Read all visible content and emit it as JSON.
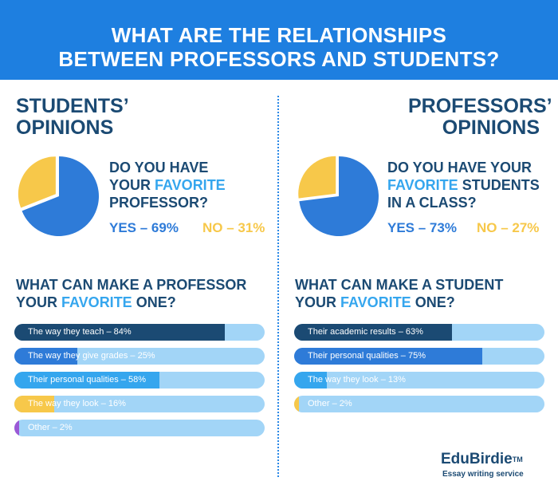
{
  "header": {
    "title_line1": "WHAT ARE THE RELATIONSHIPS",
    "title_line2": "BETWEEN PROFESSORS AND STUDENTS?"
  },
  "colors": {
    "banner": "#1e7fe0",
    "navy": "#1b4a73",
    "accent_blue": "#35a6ee",
    "yes_blue": "#2e7bd8",
    "no_yellow": "#f7c84a",
    "bar_track": "#a2d5f7"
  },
  "students": {
    "heading_line1": "STUDENTS’",
    "heading_line2": "OPINIONS",
    "question_line1": "DO YOU HAVE",
    "question_line2_pre": "YOUR ",
    "question_line2_fav": "FAVORITE",
    "question_line3": "PROFESSOR?",
    "yes_label": "YES – 69%",
    "no_label": "NO – 31%",
    "bars_title_line1": "WHAT CAN MAKE A PROFESSOR",
    "bars_title_line2_pre": "YOUR ",
    "bars_title_line2_fav": "FAVORITE",
    "bars_title_line2_post": " ONE?"
  },
  "professors": {
    "heading_line1": "PROFESSORS’",
    "heading_line2": "OPINIONS",
    "question_line1": "DO YOU HAVE YOUR",
    "question_line2_fav": "FAVORITE",
    "question_line2_post": " STUDENTS",
    "question_line3": "IN A CLASS?",
    "yes_label": "YES – 73%",
    "no_label": "NO – 27%",
    "bars_title_line1": "WHAT CAN MAKE A STUDENT",
    "bars_title_line2_pre": "YOUR ",
    "bars_title_line2_fav": "FAVORITE",
    "bars_title_line2_post": " ONE?"
  },
  "chart_data": [
    {
      "type": "pie",
      "title": "DO YOU HAVE YOUR FAVORITE PROFESSOR?",
      "categories": [
        "YES",
        "NO"
      ],
      "values": [
        69,
        31
      ],
      "colors": [
        "#2e7bd8",
        "#f7c84a"
      ]
    },
    {
      "type": "pie",
      "title": "DO YOU HAVE YOUR FAVORITE STUDENTS IN A CLASS?",
      "categories": [
        "YES",
        "NO"
      ],
      "values": [
        73,
        27
      ],
      "colors": [
        "#2e7bd8",
        "#f7c84a"
      ]
    },
    {
      "type": "bar",
      "title": "WHAT CAN MAKE A PROFESSOR YOUR FAVORITE ONE?",
      "labels": [
        "The way they teach – 84%",
        "The way they give grades – 25%",
        "Their personal qualities – 58%",
        "The way they look –  16%",
        "Other –  2%"
      ],
      "values": [
        84,
        25,
        58,
        16,
        2
      ],
      "colors": [
        "#1b4a73",
        "#2e7bd8",
        "#35a6ee",
        "#f7c84a",
        "#9b59d6"
      ],
      "ylim": [
        0,
        100
      ]
    },
    {
      "type": "bar",
      "title": "WHAT CAN MAKE A STUDENT YOUR FAVORITE ONE?",
      "labels": [
        "Their academic results – 63%",
        "Their personal qualities – 75%",
        "The way they look – 13%",
        "Other – 2%"
      ],
      "values": [
        63,
        75,
        13,
        2
      ],
      "colors": [
        "#1b4a73",
        "#2e7bd8",
        "#35a6ee",
        "#f7c84a"
      ],
      "ylim": [
        0,
        100
      ]
    }
  ],
  "logo": {
    "name": "EduBirdie",
    "tm": "TM",
    "tagline": "Essay writing service"
  }
}
